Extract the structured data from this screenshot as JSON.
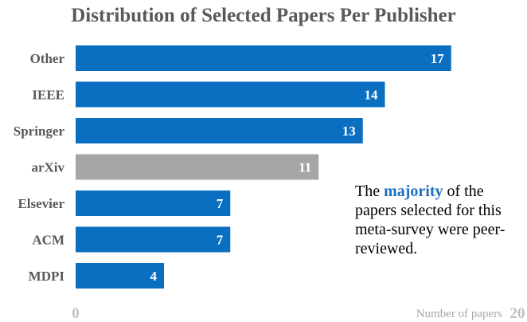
{
  "chart_data": {
    "type": "bar",
    "orientation": "horizontal",
    "title": "Distribution of Selected Papers Per Publisher",
    "categories": [
      "Other",
      "IEEE",
      "Springer",
      "arXiv",
      "Elsevier",
      "ACM",
      "MDPI"
    ],
    "values": [
      17,
      14,
      13,
      11,
      7,
      7,
      4
    ],
    "colors": [
      "#0b6fc1",
      "#0b6fc1",
      "#0b6fc1",
      "#a6a6a6",
      "#0b6fc1",
      "#0b6fc1",
      "#0b6fc1"
    ],
    "xlim": [
      0,
      20
    ],
    "xticks": [
      "0",
      "20"
    ],
    "xlabel": "Number of papers",
    "grid": false
  },
  "annotation": {
    "before": "The ",
    "highlight": "majority",
    "after": " of the papers selected for this meta-survey were peer-reviewed."
  },
  "colors": {
    "accent": "#0b6fc1",
    "muted_bar": "#a6a6a6",
    "highlight_text": "#1f6fbf"
  }
}
